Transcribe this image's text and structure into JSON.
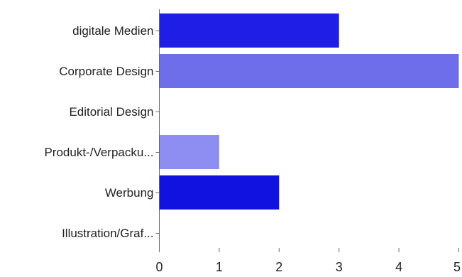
{
  "chart_data": {
    "type": "bar",
    "orientation": "horizontal",
    "categories": [
      "digitale Medien",
      "Corporate Design",
      "Editorial Design",
      "Produkt-/Verpacku...",
      "Werbung",
      "Illustration/Graf..."
    ],
    "values": [
      3,
      5,
      0,
      1,
      2,
      0
    ],
    "bar_colors": [
      "#1e1ee6",
      "#6e6eeb",
      "#4a4ae8",
      "#8e8ef2",
      "#1212e0",
      "#3030e4"
    ],
    "x_ticks": [
      0,
      1,
      2,
      3,
      4,
      5
    ],
    "xlim": [
      0,
      5
    ],
    "title": "",
    "xlabel": "",
    "ylabel": "",
    "grid": false,
    "legend": "none"
  }
}
